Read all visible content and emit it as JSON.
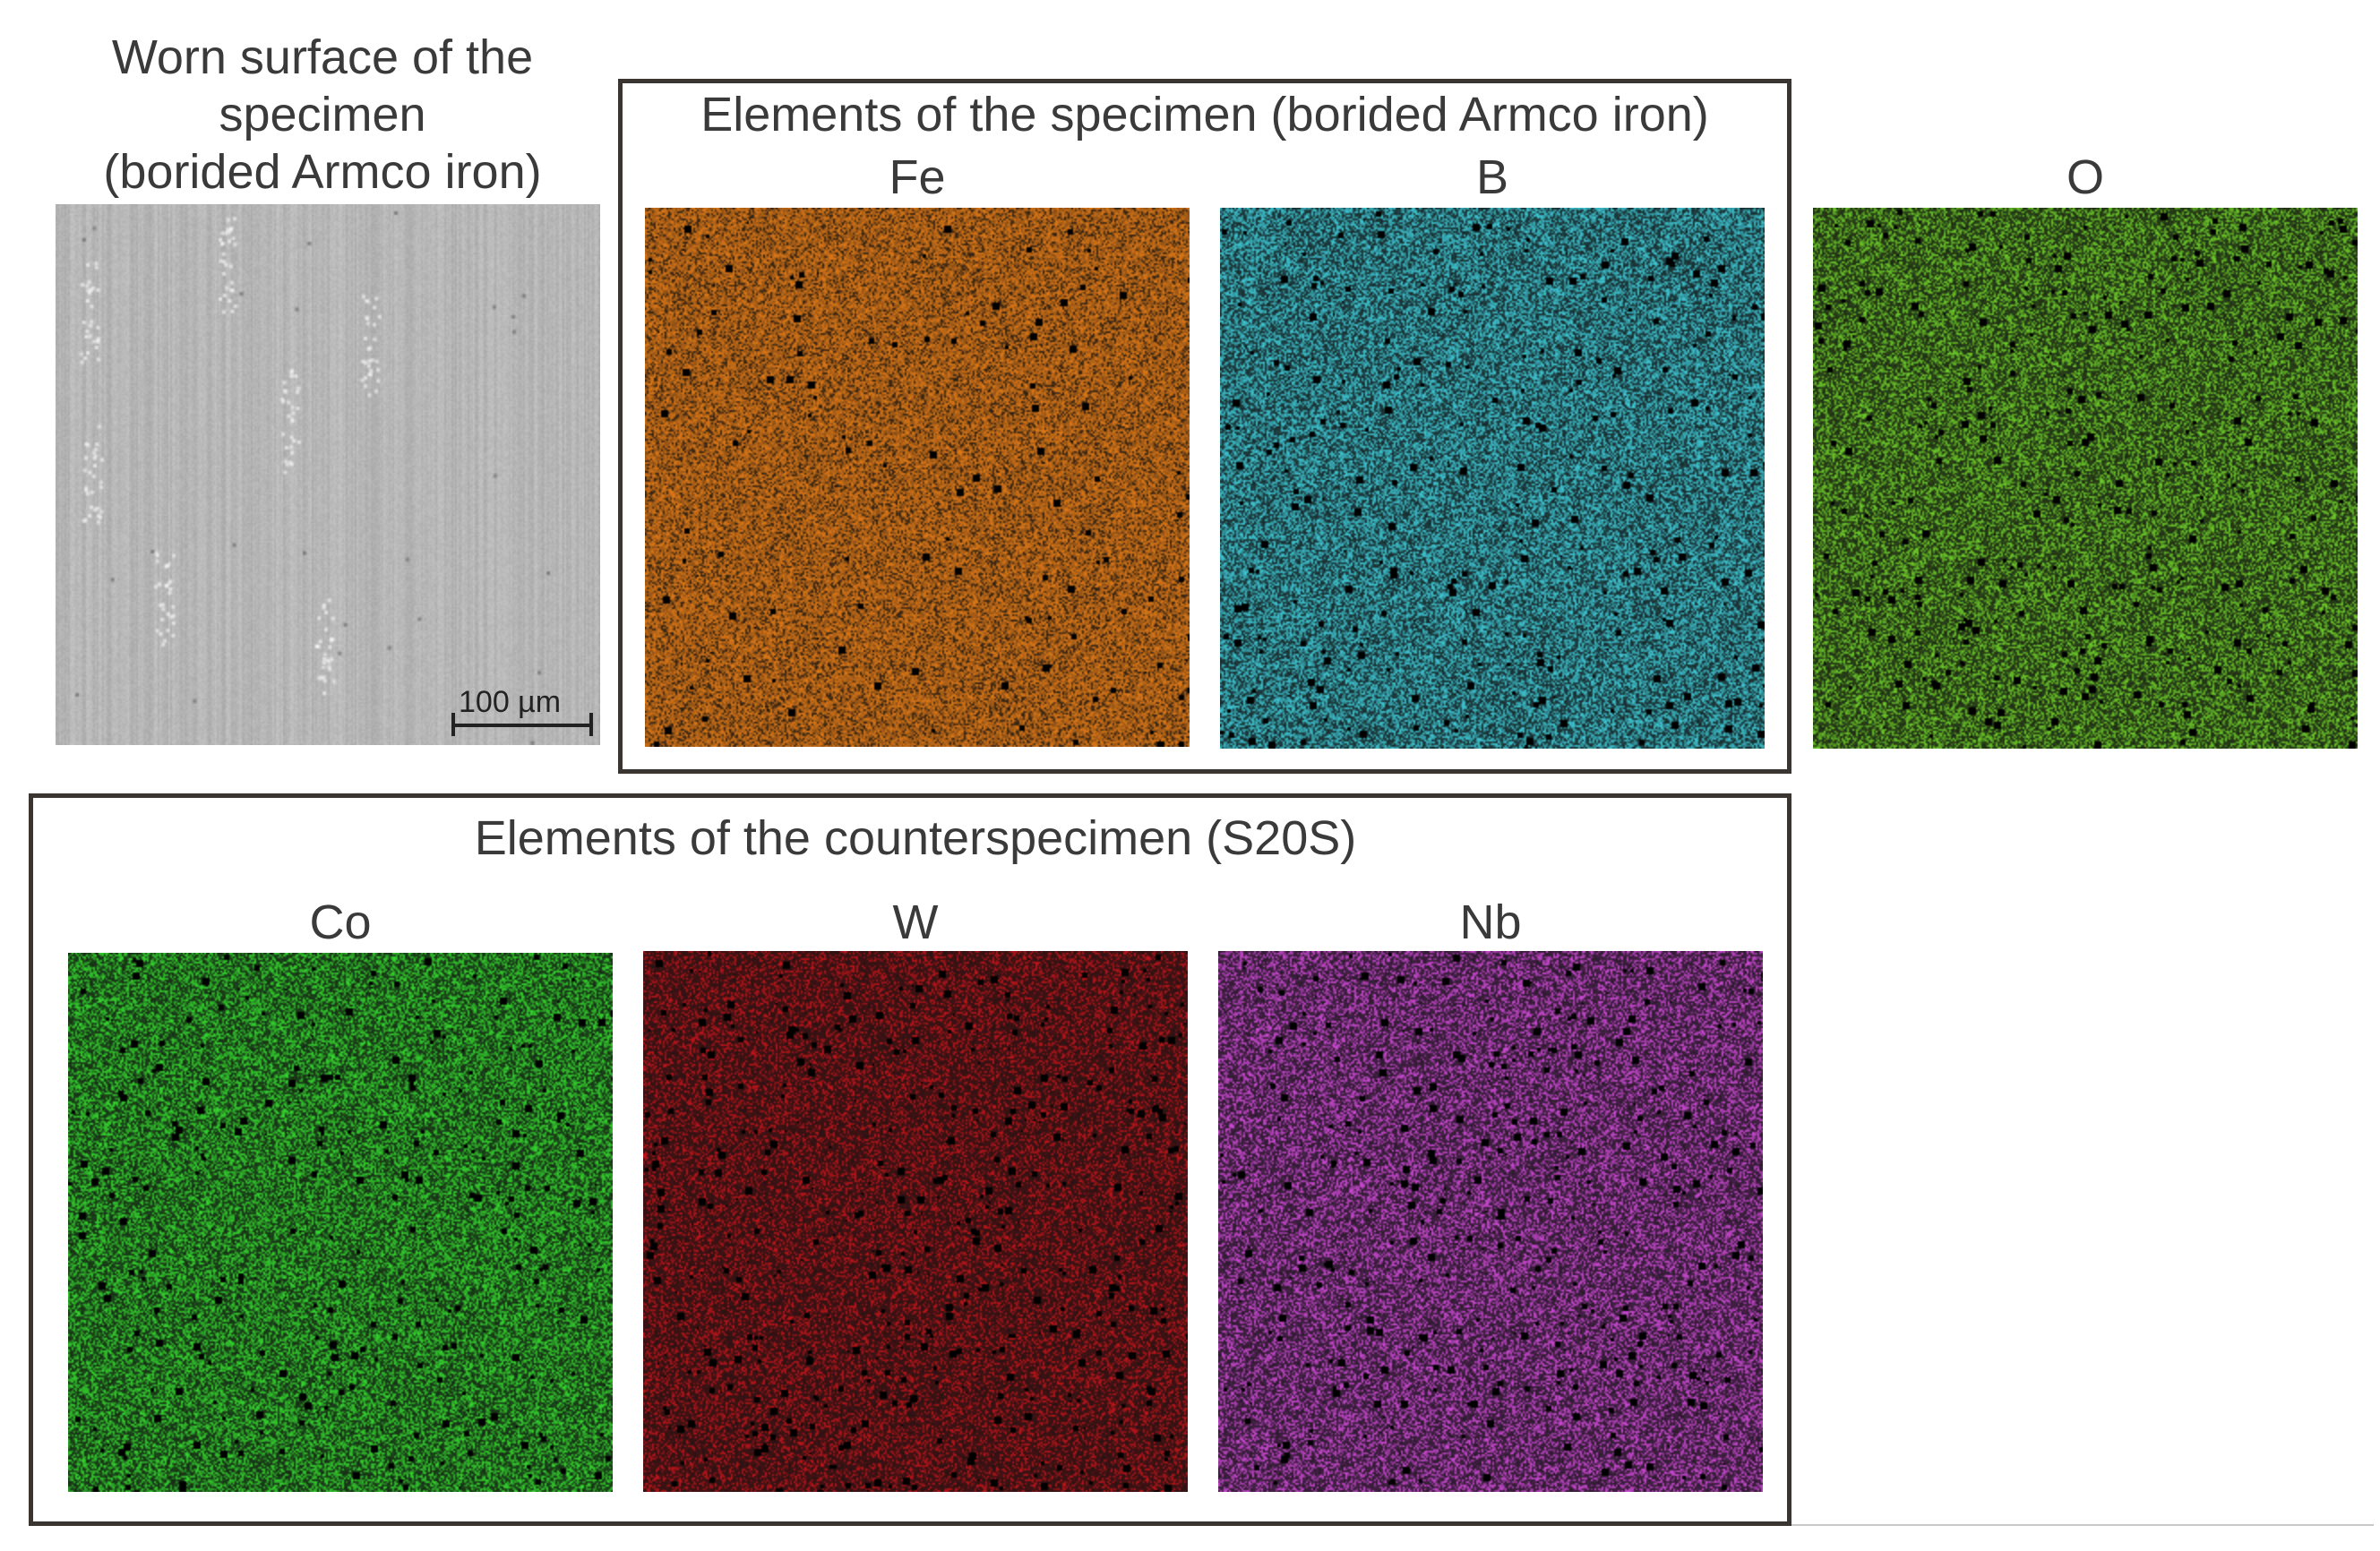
{
  "worn_surface": {
    "title_lines": [
      "Worn surface of the",
      "specimen",
      "(borided Armco iron)"
    ],
    "scale_label": "100 µm"
  },
  "specimen_group": {
    "title": "Elements of the specimen (borided Armco iron)",
    "maps": [
      {
        "label": "Fe",
        "color": "#e07a18",
        "density": 0.78
      },
      {
        "label": "B",
        "color": "#3fc9d6",
        "density": 0.55
      }
    ]
  },
  "oxygen_map": {
    "label": "O",
    "color": "#6fd02a",
    "density": 0.45
  },
  "counterspecimen_group": {
    "title": "Elements of the counterspecimen (S20S)",
    "maps": [
      {
        "label": "Co",
        "color": "#35d92f",
        "density": 0.5
      },
      {
        "label": "W",
        "color": "#c8141a",
        "density": 0.32
      },
      {
        "label": "Nb",
        "color": "#d04ad8",
        "density": 0.42
      }
    ]
  }
}
